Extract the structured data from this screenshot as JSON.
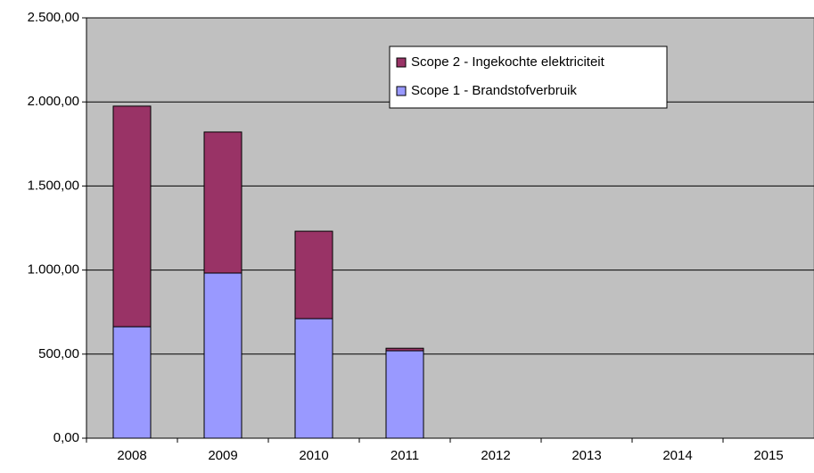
{
  "chart_data": {
    "type": "stacked_bar",
    "categories": [
      "2008",
      "2009",
      "2010",
      "2011",
      "2012",
      "2013",
      "2014",
      "2015"
    ],
    "series": [
      {
        "name": "Scope 1 - Brandstofverbruik",
        "color": "#9999ff",
        "values": [
          663,
          982,
          711,
          520,
          null,
          null,
          null,
          null
        ]
      },
      {
        "name": "Scope 2 - Ingekochte elektriciteit",
        "color": "#993366",
        "values": [
          1312,
          839,
          520,
          15,
          null,
          null,
          null,
          null
        ]
      }
    ],
    "ylim": [
      0,
      2500
    ],
    "yticks": [
      {
        "value": 0,
        "label": "0,00"
      },
      {
        "value": 500,
        "label": "500,00"
      },
      {
        "value": 1000,
        "label": "1.000,00"
      },
      {
        "value": 1500,
        "label": "1.500,00"
      },
      {
        "value": 2000,
        "label": "2.000,00"
      },
      {
        "value": 2500,
        "label": "2.500,00"
      }
    ],
    "grid": true,
    "plot_background": "#c0c0c0",
    "legend": "top-right"
  }
}
